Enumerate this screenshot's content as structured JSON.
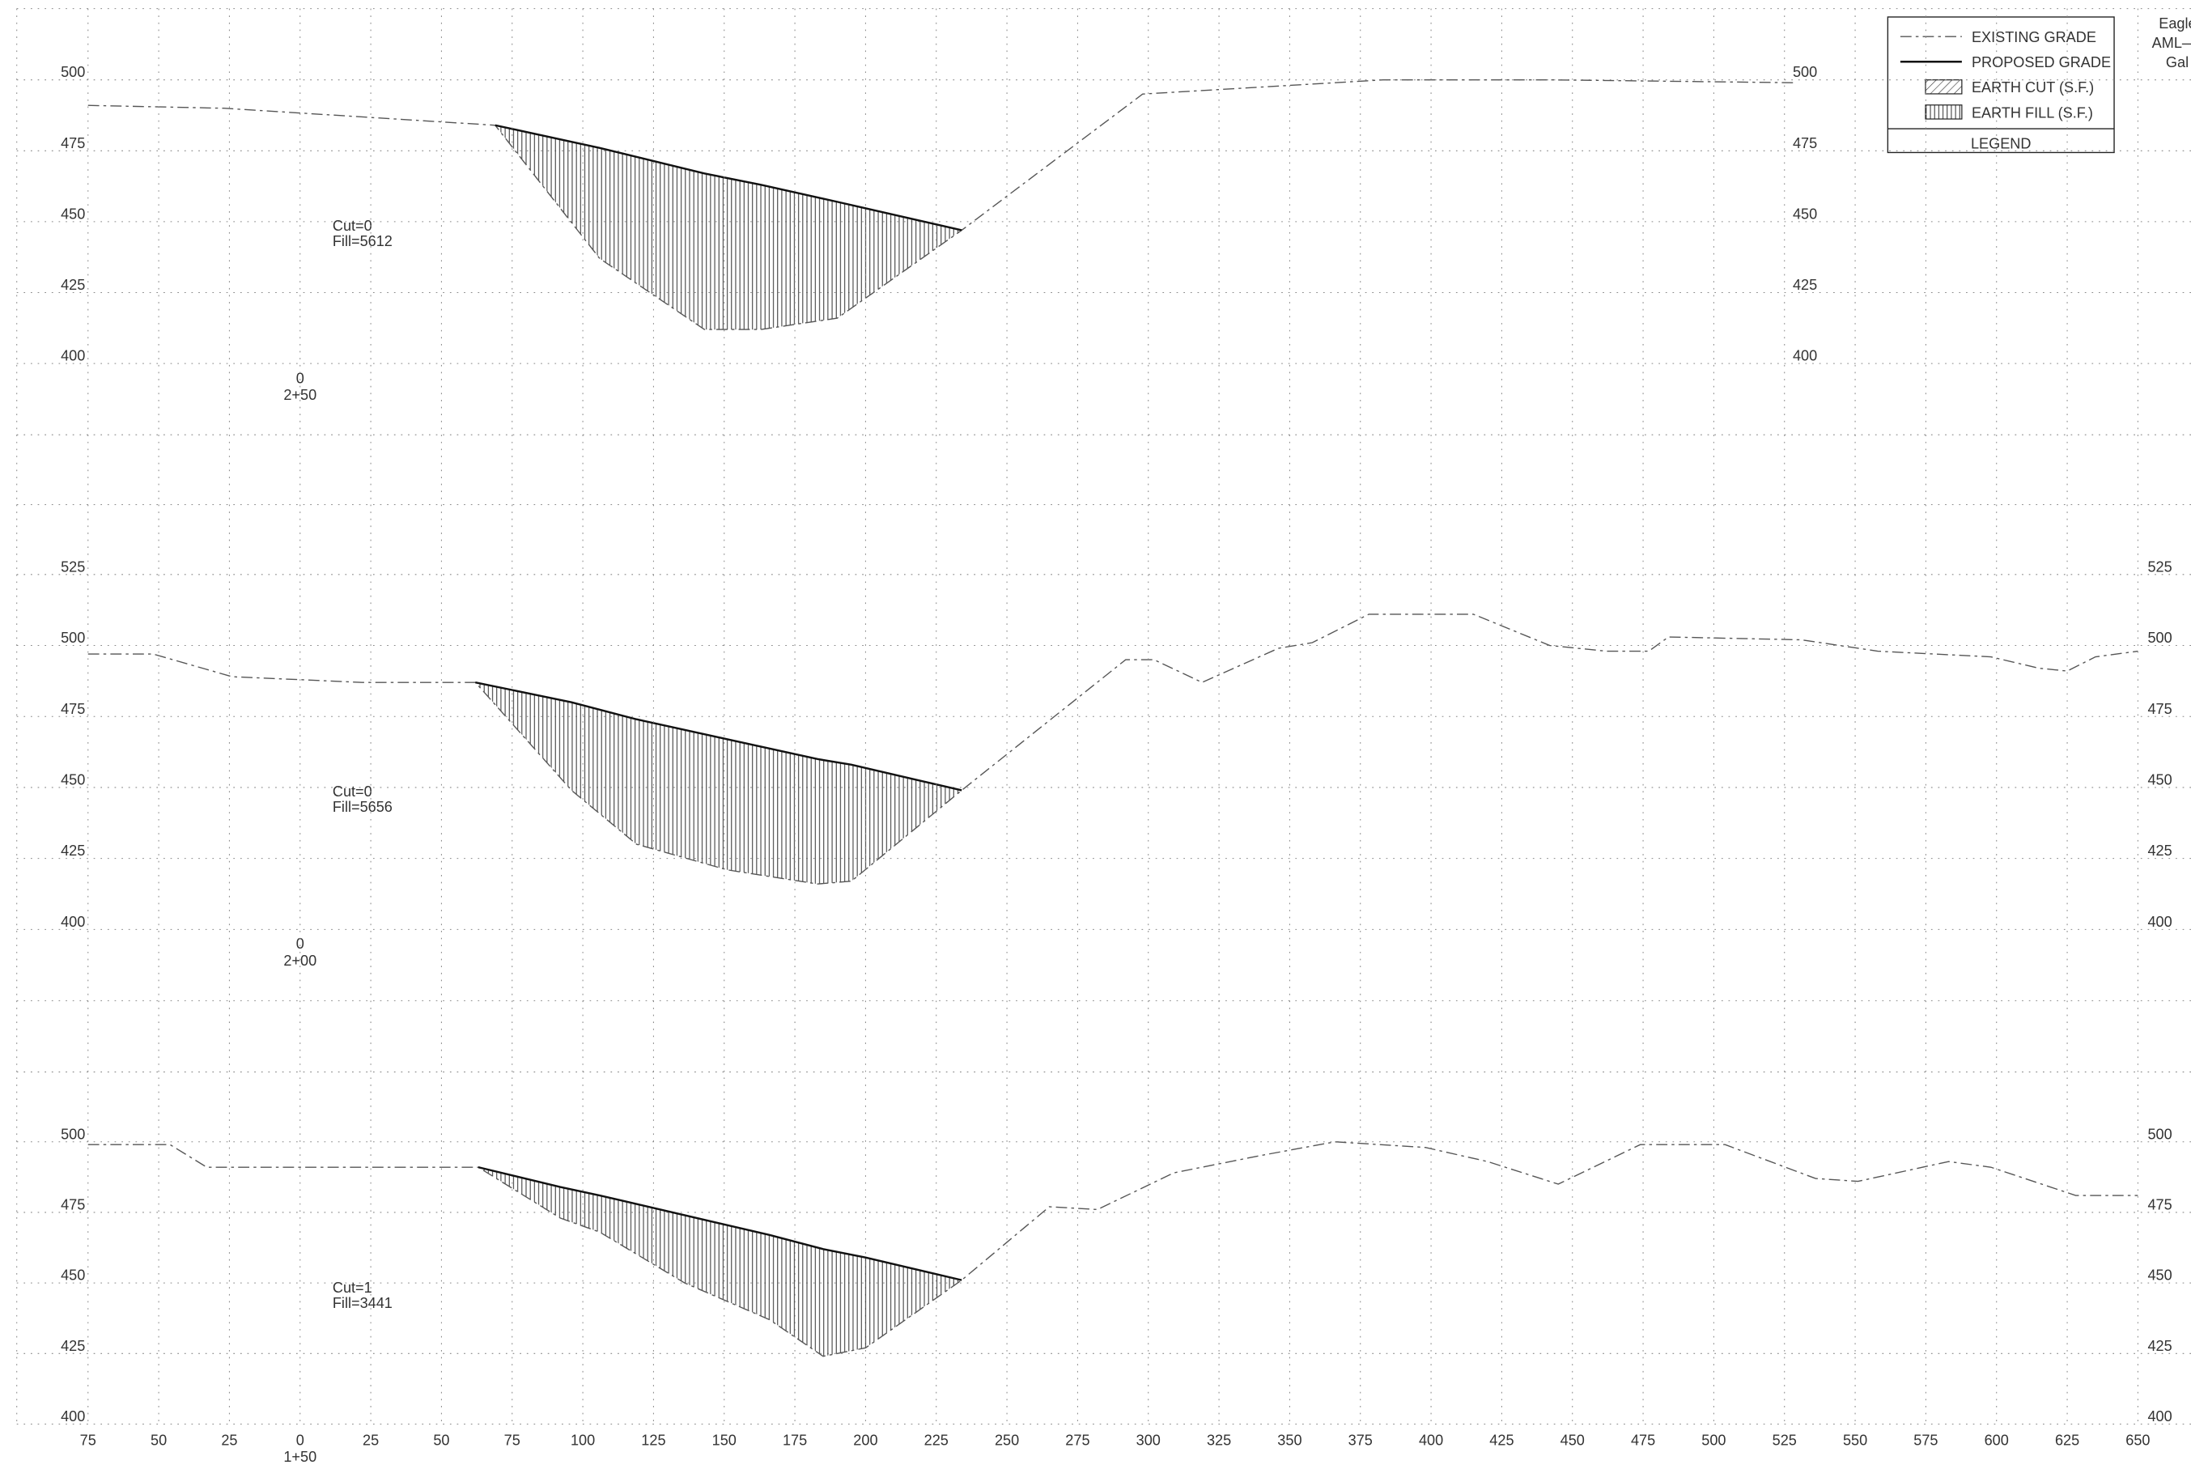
{
  "legend": {
    "items": [
      "EXISTING GRADE",
      "PROPOSED GRADE",
      "EARTH CUT (S.F.)",
      "EARTH FILL (S.F.)"
    ],
    "title": "LEGEND"
  },
  "title_block": [
    "Eagle",
    "AML—",
    "Gal"
  ],
  "chart_data": [
    {
      "type": "line",
      "cut_label": "Cut=0",
      "fill_label": "Fill=5612",
      "station_label": [
        "0",
        "2+50"
      ],
      "x": [
        -75,
        -27,
        69,
        106,
        143,
        163,
        190,
        234,
        298,
        383,
        443,
        528
      ],
      "series": [
        {
          "color": "#555555",
          "dash": true,
          "values": [
            491,
            490,
            484,
            437,
            412,
            412,
            416,
            447,
            495,
            500,
            500,
            499
          ]
        },
        {
          "color": "#111111",
          "dash": false,
          "values": [
            null,
            null,
            484,
            476,
            467,
            463,
            457,
            447,
            null,
            null,
            null,
            null
          ]
        }
      ],
      "xlim": [
        -75,
        650
      ],
      "ylim": [
        400,
        500
      ],
      "yticks": [
        400,
        425,
        450,
        475,
        500
      ],
      "grid": true
    },
    {
      "type": "line",
      "cut_label": "Cut=0",
      "fill_label": "Fill=5656",
      "station_label": [
        "0",
        "2+00"
      ],
      "x": [
        -75,
        -52,
        -24,
        22,
        62,
        96,
        119,
        151,
        183,
        195,
        234,
        292,
        302,
        319,
        346,
        358,
        378,
        415,
        442,
        462,
        477,
        484,
        531,
        558,
        598,
        615,
        625,
        635,
        650
      ],
      "series": [
        {
          "color": "#555555",
          "dash": true,
          "values": [
            497,
            497,
            489,
            487,
            487,
            449,
            430,
            421,
            416,
            417,
            449,
            495,
            495,
            487,
            499,
            501,
            511,
            511,
            500,
            498,
            498,
            503,
            502,
            498,
            496,
            492,
            491,
            496,
            498
          ]
        },
        {
          "color": "#111111",
          "dash": false,
          "values": [
            null,
            null,
            null,
            null,
            487,
            480,
            474,
            467,
            460,
            458,
            449,
            null,
            null,
            null,
            null,
            null,
            null,
            null,
            null,
            null,
            null,
            null,
            null,
            null,
            null,
            null,
            null,
            null,
            null
          ]
        }
      ],
      "xlim": [
        -75,
        650
      ],
      "ylim": [
        400,
        525
      ],
      "yticks": [
        400,
        425,
        450,
        475,
        500,
        525
      ],
      "grid": true
    },
    {
      "type": "line",
      "cut_label": "Cut=1",
      "fill_label": "Fill=3441",
      "station_label": [
        "1+50"
      ],
      "x": [
        -75,
        -46,
        -33,
        -7,
        63,
        92,
        106,
        136,
        166,
        185,
        200,
        234,
        265,
        282,
        309,
        339,
        366,
        398,
        420,
        445,
        474,
        504,
        536,
        551,
        583,
        598,
        628,
        650
      ],
      "series": [
        {
          "color": "#555555",
          "dash": true,
          "values": [
            499,
            499,
            491,
            491,
            491,
            473,
            468,
            450,
            437,
            424,
            427,
            451,
            477,
            476,
            489,
            495,
            500,
            498,
            493,
            485,
            499,
            499,
            487,
            486,
            493,
            491,
            481,
            481
          ]
        },
        {
          "color": "#111111",
          "dash": false,
          "values": [
            null,
            null,
            null,
            null,
            491,
            484,
            481,
            474,
            467,
            462,
            459,
            451,
            null,
            null,
            null,
            null,
            null,
            null,
            null,
            null,
            null,
            null,
            null,
            null,
            null,
            null,
            null,
            null
          ]
        }
      ],
      "xlim": [
        -75,
        650
      ],
      "ylim": [
        400,
        500
      ],
      "yticks": [
        400,
        425,
        450,
        475,
        500
      ],
      "xticks": [
        {
          "value": -75,
          "label": "75"
        },
        {
          "value": -50,
          "label": "50"
        },
        {
          "value": -25,
          "label": "25"
        },
        0,
        25,
        50,
        75,
        100,
        125,
        150,
        175,
        200,
        225,
        250,
        275,
        300,
        325,
        350,
        375,
        400,
        425,
        450,
        475,
        500,
        525,
        550,
        575,
        600,
        625,
        650
      ],
      "grid": true
    }
  ]
}
